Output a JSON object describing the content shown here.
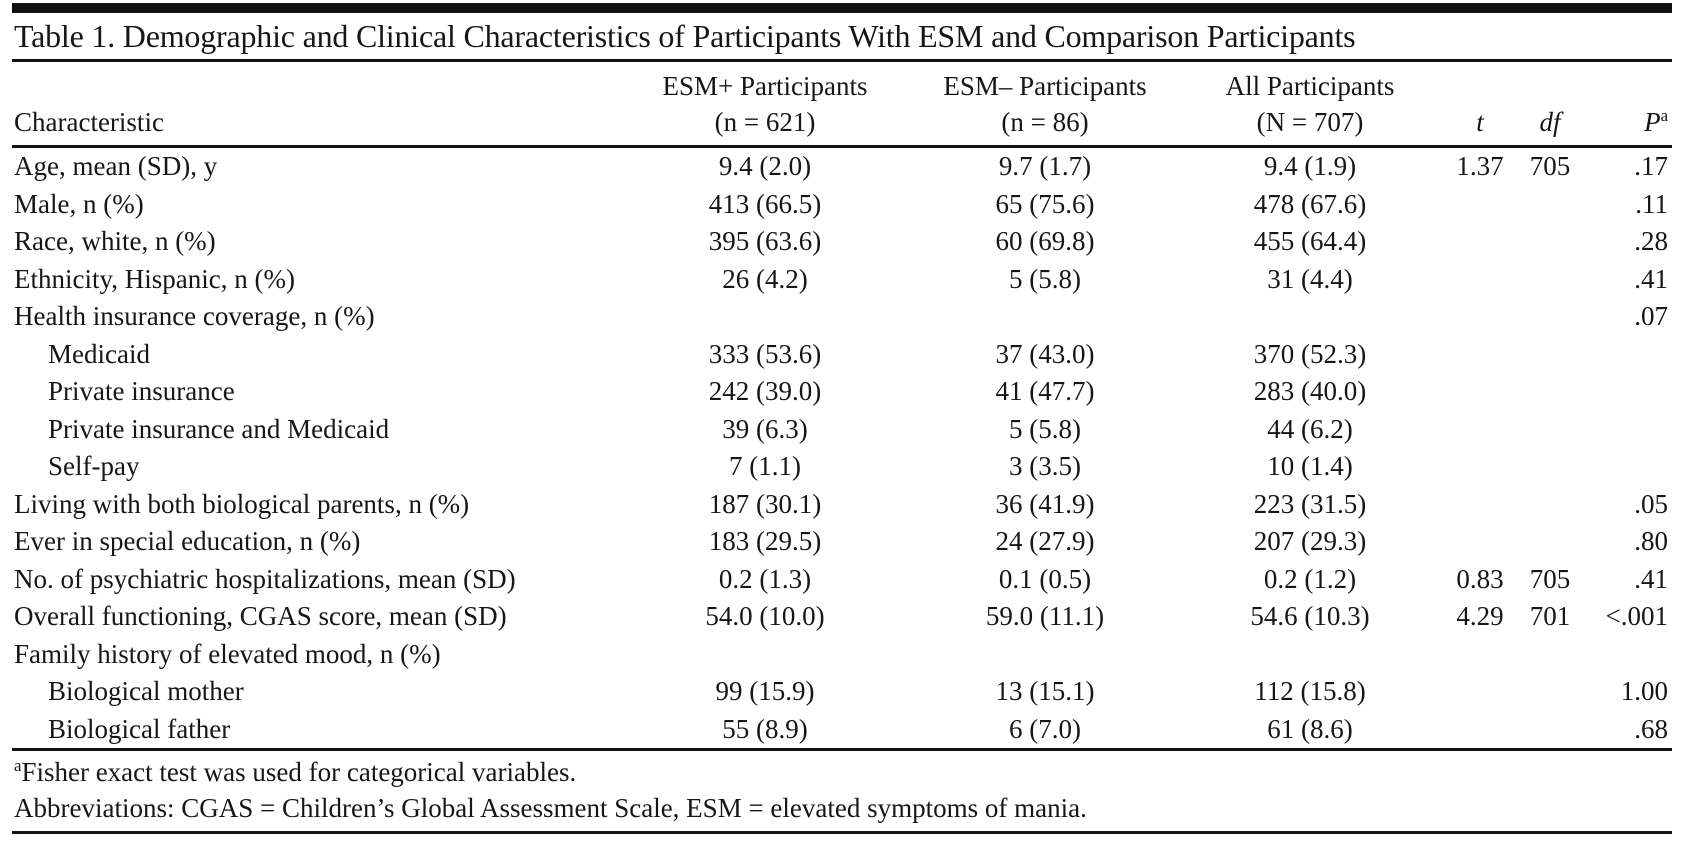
{
  "table": {
    "title": "Table 1. Demographic and Clinical Characteristics of Participants With ESM and Comparison Participants",
    "colors": {
      "text": "#161616",
      "rule": "#131313",
      "background": "#ffffff"
    },
    "columns": {
      "characteristic": "Characteristic",
      "groups": [
        {
          "label": "ESM+ Participants",
          "sub": "(n = 621)"
        },
        {
          "label": "ESM– Participants",
          "sub": "(n = 86)"
        },
        {
          "label": "All Participants",
          "sub": "(N = 707)"
        }
      ],
      "stats": [
        {
          "label": "t",
          "sup": ""
        },
        {
          "label": "df",
          "sup": ""
        },
        {
          "label": "P",
          "sup": "a"
        }
      ]
    },
    "rows": [
      {
        "label": "Age, mean (SD), y",
        "indent": false,
        "values": [
          "9.4 (2.0)",
          "9.7 (1.7)",
          "9.4 (1.9)",
          "1.37",
          "705",
          ".17"
        ]
      },
      {
        "label": "Male, n (%)",
        "indent": false,
        "values": [
          "413 (66.5)",
          "65 (75.6)",
          "478 (67.6)",
          "",
          "",
          ".11"
        ]
      },
      {
        "label": "Race, white, n (%)",
        "indent": false,
        "values": [
          "395 (63.6)",
          "60 (69.8)",
          "455 (64.4)",
          "",
          "",
          ".28"
        ]
      },
      {
        "label": "Ethnicity, Hispanic, n (%)",
        "indent": false,
        "values": [
          "26 (4.2)",
          "5 (5.8)",
          "31 (4.4)",
          "",
          "",
          ".41"
        ]
      },
      {
        "label": "Health insurance coverage, n (%)",
        "indent": false,
        "values": [
          "",
          "",
          "",
          "",
          "",
          ".07"
        ]
      },
      {
        "label": "Medicaid",
        "indent": true,
        "values": [
          "333 (53.6)",
          "37 (43.0)",
          "370 (52.3)",
          "",
          "",
          ""
        ]
      },
      {
        "label": "Private insurance",
        "indent": true,
        "values": [
          "242 (39.0)",
          "41 (47.7)",
          "283 (40.0)",
          "",
          "",
          ""
        ]
      },
      {
        "label": "Private insurance and Medicaid",
        "indent": true,
        "values": [
          "39 (6.3)",
          "5 (5.8)",
          "44 (6.2)",
          "",
          "",
          ""
        ]
      },
      {
        "label": "Self-pay",
        "indent": true,
        "values": [
          "7 (1.1)",
          "3 (3.5)",
          "10 (1.4)",
          "",
          "",
          ""
        ]
      },
      {
        "label": "Living with both biological parents, n (%)",
        "indent": false,
        "values": [
          "187 (30.1)",
          "36 (41.9)",
          "223 (31.5)",
          "",
          "",
          ".05"
        ]
      },
      {
        "label": "Ever in special education, n (%)",
        "indent": false,
        "values": [
          "183 (29.5)",
          "24 (27.9)",
          "207 (29.3)",
          "",
          "",
          ".80"
        ]
      },
      {
        "label": "No. of psychiatric hospitalizations, mean (SD)",
        "indent": false,
        "values": [
          "0.2 (1.3)",
          "0.1 (0.5)",
          "0.2 (1.2)",
          "0.83",
          "705",
          ".41"
        ]
      },
      {
        "label": "Overall functioning, CGAS score, mean (SD)",
        "indent": false,
        "values": [
          "54.0 (10.0)",
          "59.0 (11.1)",
          "54.6 (10.3)",
          "4.29",
          "701",
          "<.001"
        ]
      },
      {
        "label": "Family history of elevated mood, n (%)",
        "indent": false,
        "values": [
          "",
          "",
          "",
          "",
          "",
          ""
        ]
      },
      {
        "label": "Biological mother",
        "indent": true,
        "values": [
          "99 (15.9)",
          "13 (15.1)",
          "112 (15.8)",
          "",
          "",
          "1.00"
        ]
      },
      {
        "label": "Biological father",
        "indent": true,
        "values": [
          "55 (8.9)",
          "6 (7.0)",
          "61 (8.6)",
          "",
          "",
          ".68"
        ]
      }
    ],
    "footnotes": [
      {
        "sup": "a",
        "text": "Fisher exact test was used for categorical variables."
      },
      {
        "sup": "",
        "text": "Abbreviations: CGAS = Children’s Global Assessment Scale, ESM = elevated symptoms of mania."
      }
    ]
  }
}
